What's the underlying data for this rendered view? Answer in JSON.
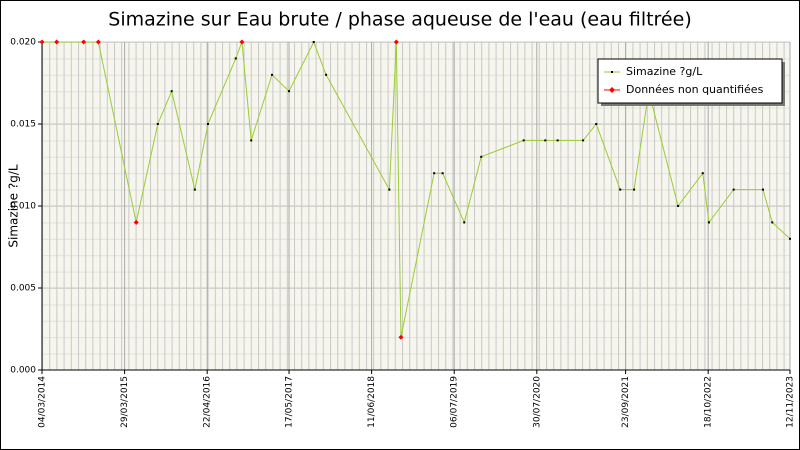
{
  "chart_data": {
    "type": "line",
    "title": "Simazine sur Eau brute / phase aqueuse de l'eau (eau filtrée)",
    "y_label": "Simazine ?g/L",
    "x": [
      2014.17,
      2014.36,
      2014.71,
      2014.9,
      2015.39,
      2015.67,
      2015.85,
      2016.15,
      2016.32,
      2016.68,
      2016.76,
      2016.88,
      2017.15,
      2017.37,
      2017.69,
      2017.85,
      2018.67,
      2018.76,
      2018.82,
      2019.25,
      2019.36,
      2019.64,
      2019.86,
      2020.41,
      2020.69,
      2020.85,
      2021.18,
      2021.35,
      2021.66,
      2021.84,
      2022.03,
      2022.41,
      2022.73,
      2022.81,
      2023.13,
      2023.51,
      2023.63,
      2023.86
    ],
    "series": [
      {
        "name": "Simazine ?g/L",
        "color": "#99cc33",
        "marker_color": "#000000",
        "values": [
          0.02,
          0.02,
          0.02,
          0.02,
          0.009,
          0.015,
          0.017,
          0.011,
          0.015,
          0.019,
          0.02,
          0.014,
          0.018,
          0.017,
          0.02,
          0.018,
          0.011,
          0.02,
          0.002,
          0.012,
          0.012,
          0.009,
          0.013,
          0.014,
          0.014,
          0.014,
          0.014,
          0.015,
          0.011,
          0.011,
          0.017,
          0.01,
          0.012,
          0.009,
          0.011,
          0.011,
          0.009,
          0.008
        ]
      },
      {
        "name": "Données non quantifiées",
        "color": "#ff0000",
        "marker_color": "#ff0000",
        "values": [
          0.02,
          0.02,
          0.02,
          0.02,
          0.009,
          null,
          null,
          null,
          null,
          null,
          0.02,
          null,
          null,
          null,
          null,
          null,
          null,
          0.02,
          0.002,
          null,
          null,
          null,
          null,
          null,
          null,
          null,
          null,
          null,
          null,
          null,
          null,
          null,
          null,
          null,
          null,
          null,
          null,
          null
        ]
      }
    ],
    "xlim": [
      2014.17,
      2023.86
    ],
    "xticks": [
      {
        "value": 2014.17,
        "label": "04/03/2014"
      },
      {
        "value": 2015.24,
        "label": "29/03/2015"
      },
      {
        "value": 2016.31,
        "label": "22/04/2016"
      },
      {
        "value": 2017.37,
        "label": "17/05/2017"
      },
      {
        "value": 2018.44,
        "label": "11/06/2018"
      },
      {
        "value": 2019.51,
        "label": "06/07/2019"
      },
      {
        "value": 2020.58,
        "label": "30/07/2020"
      },
      {
        "value": 2021.73,
        "label": "23/09/2021"
      },
      {
        "value": 2022.8,
        "label": "18/10/2022"
      },
      {
        "value": 2023.86,
        "label": "12/11/2023"
      }
    ],
    "ylim": [
      0,
      0.02
    ],
    "yticks": [
      {
        "value": 0,
        "label": "0.000"
      },
      {
        "value": 0.005,
        "label": "0.005"
      },
      {
        "value": 0.01,
        "label": "0.010"
      },
      {
        "value": 0.015,
        "label": "0.015"
      },
      {
        "value": 0.02,
        "label": "0.020"
      }
    ],
    "grid": true,
    "legend": "upper-right"
  }
}
